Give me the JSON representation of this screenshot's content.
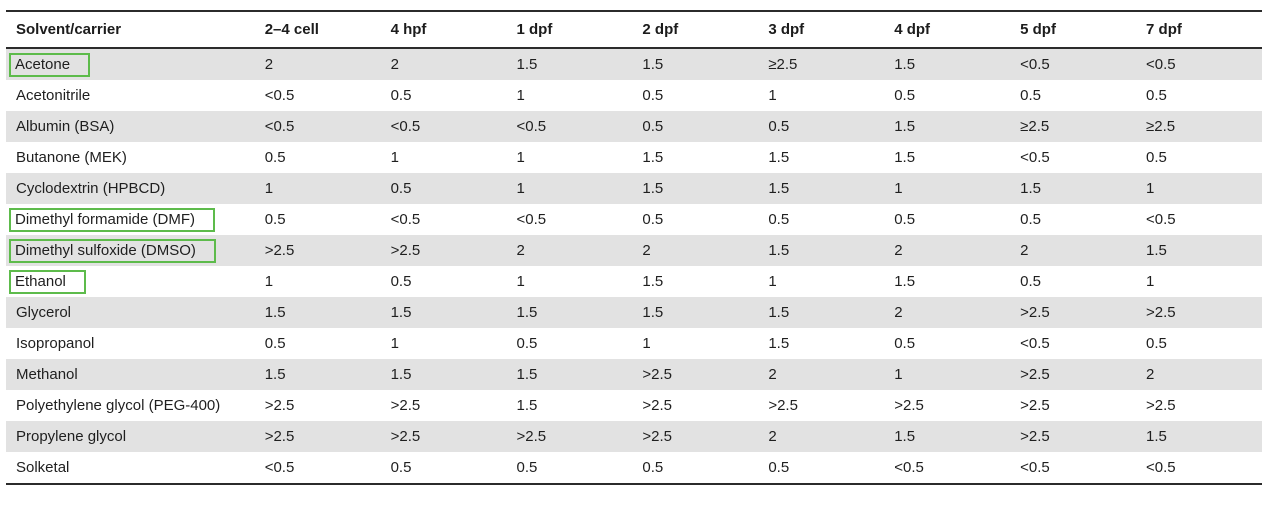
{
  "colors": {
    "highlight_green": "#5dbb4b",
    "row_shade": "#e2e2e2",
    "rule_color": "#2b2b2b",
    "text_color": "#1f1f1f"
  },
  "table": {
    "columns": [
      "Solvent/carrier",
      "2–4 cell",
      "4 hpf",
      "1 dpf",
      "2 dpf",
      "3 dpf",
      "4 dpf",
      "5 dpf",
      "7 dpf"
    ],
    "rows": [
      {
        "name": "Acetone",
        "highlighted": true,
        "values": [
          "2",
          "2",
          "1.5",
          "1.5",
          "≥2.5",
          "1.5",
          "<0.5",
          "<0.5"
        ]
      },
      {
        "name": "Acetonitrile",
        "highlighted": false,
        "values": [
          "<0.5",
          "0.5",
          "1",
          "0.5",
          "1",
          "0.5",
          "0.5",
          "0.5"
        ]
      },
      {
        "name": "Albumin (BSA)",
        "highlighted": false,
        "values": [
          "<0.5",
          "<0.5",
          "<0.5",
          "0.5",
          "0.5",
          "1.5",
          "≥2.5",
          "≥2.5"
        ]
      },
      {
        "name": "Butanone (MEK)",
        "highlighted": false,
        "values": [
          "0.5",
          "1",
          "1",
          "1.5",
          "1.5",
          "1.5",
          "<0.5",
          "0.5"
        ]
      },
      {
        "name": "Cyclodextrin (HPBCD)",
        "highlighted": false,
        "values": [
          "1",
          "0.5",
          "1",
          "1.5",
          "1.5",
          "1",
          "1.5",
          "1"
        ]
      },
      {
        "name": "Dimethyl formamide (DMF)",
        "highlighted": true,
        "values": [
          "0.5",
          "<0.5",
          "<0.5",
          "0.5",
          "0.5",
          "0.5",
          "0.5",
          "<0.5"
        ]
      },
      {
        "name": "Dimethyl sulfoxide (DMSO)",
        "highlighted": true,
        "values": [
          ">2.5",
          ">2.5",
          "2",
          "2",
          "1.5",
          "2",
          "2",
          "1.5"
        ]
      },
      {
        "name": "Ethanol",
        "highlighted": true,
        "values": [
          "1",
          "0.5",
          "1",
          "1.5",
          "1",
          "1.5",
          "0.5",
          "1"
        ]
      },
      {
        "name": "Glycerol",
        "highlighted": false,
        "values": [
          "1.5",
          "1.5",
          "1.5",
          "1.5",
          "1.5",
          "2",
          ">2.5",
          ">2.5"
        ]
      },
      {
        "name": "Isopropanol",
        "highlighted": false,
        "values": [
          "0.5",
          "1",
          "0.5",
          "1",
          "1.5",
          "0.5",
          "<0.5",
          "0.5"
        ]
      },
      {
        "name": "Methanol",
        "highlighted": false,
        "values": [
          "1.5",
          "1.5",
          "1.5",
          ">2.5",
          "2",
          "1",
          ">2.5",
          "2"
        ]
      },
      {
        "name": "Polyethylene glycol (PEG-400)",
        "highlighted": false,
        "values": [
          ">2.5",
          ">2.5",
          "1.5",
          ">2.5",
          ">2.5",
          ">2.5",
          ">2.5",
          ">2.5"
        ]
      },
      {
        "name": "Propylene glycol",
        "highlighted": false,
        "values": [
          ">2.5",
          ">2.5",
          ">2.5",
          ">2.5",
          "2",
          "1.5",
          ">2.5",
          "1.5"
        ]
      },
      {
        "name": "Solketal",
        "highlighted": false,
        "values": [
          "<0.5",
          "0.5",
          "0.5",
          "0.5",
          "0.5",
          "<0.5",
          "<0.5",
          "<0.5"
        ]
      }
    ]
  }
}
